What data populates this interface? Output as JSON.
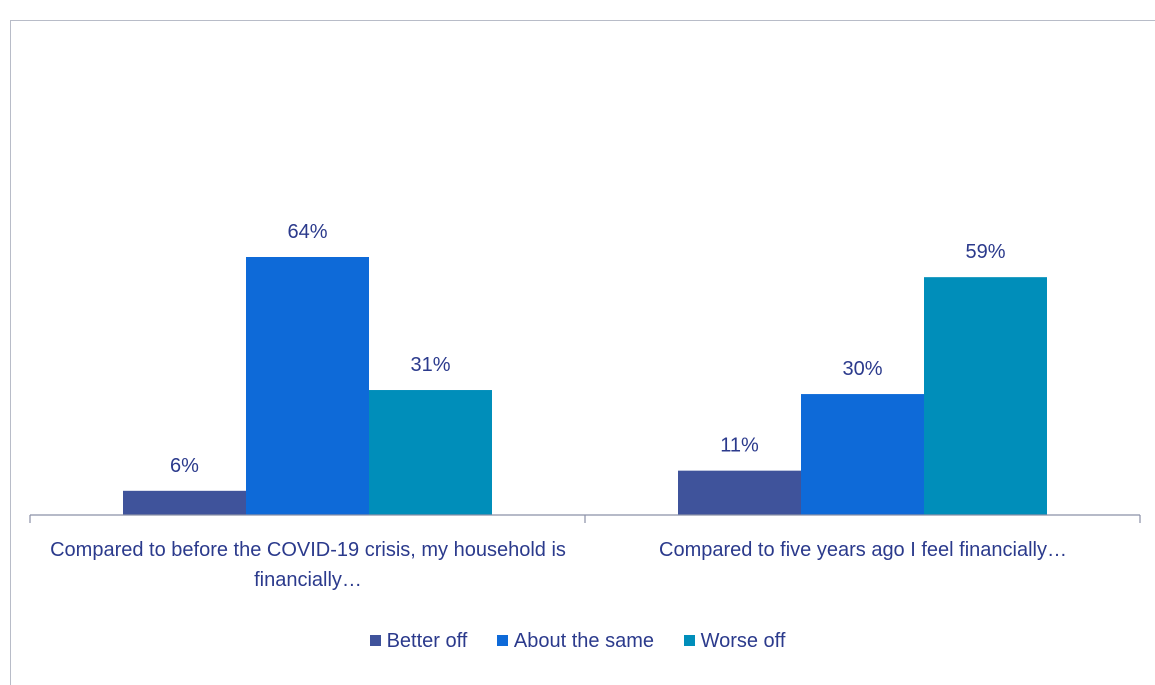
{
  "chart_data": {
    "type": "bar",
    "title": "",
    "categories": [
      "Compared to before the COVID-19 crisis, my household is financially…",
      "Compared to five years ago I feel financially…"
    ],
    "series": [
      {
        "name": "Better off",
        "values": [
          6,
          11
        ],
        "labels": [
          "6%",
          "11%"
        ],
        "color": "#3f539b"
      },
      {
        "name": "About the same",
        "values": [
          64,
          30
        ],
        "labels": [
          "64%",
          "30%"
        ],
        "color": "#0e6ad8"
      },
      {
        "name": "Worse off",
        "values": [
          31,
          59
        ],
        "labels": [
          "31%",
          "59%"
        ],
        "color": "#008eba"
      }
    ],
    "ylim": [
      0,
      64
    ],
    "xlabel": "",
    "ylabel": "",
    "grid": false,
    "legend_position": "bottom"
  },
  "colors": {
    "text": "#2b3a8c",
    "axis": "#8a90a6",
    "title": "#1f4fbf"
  }
}
